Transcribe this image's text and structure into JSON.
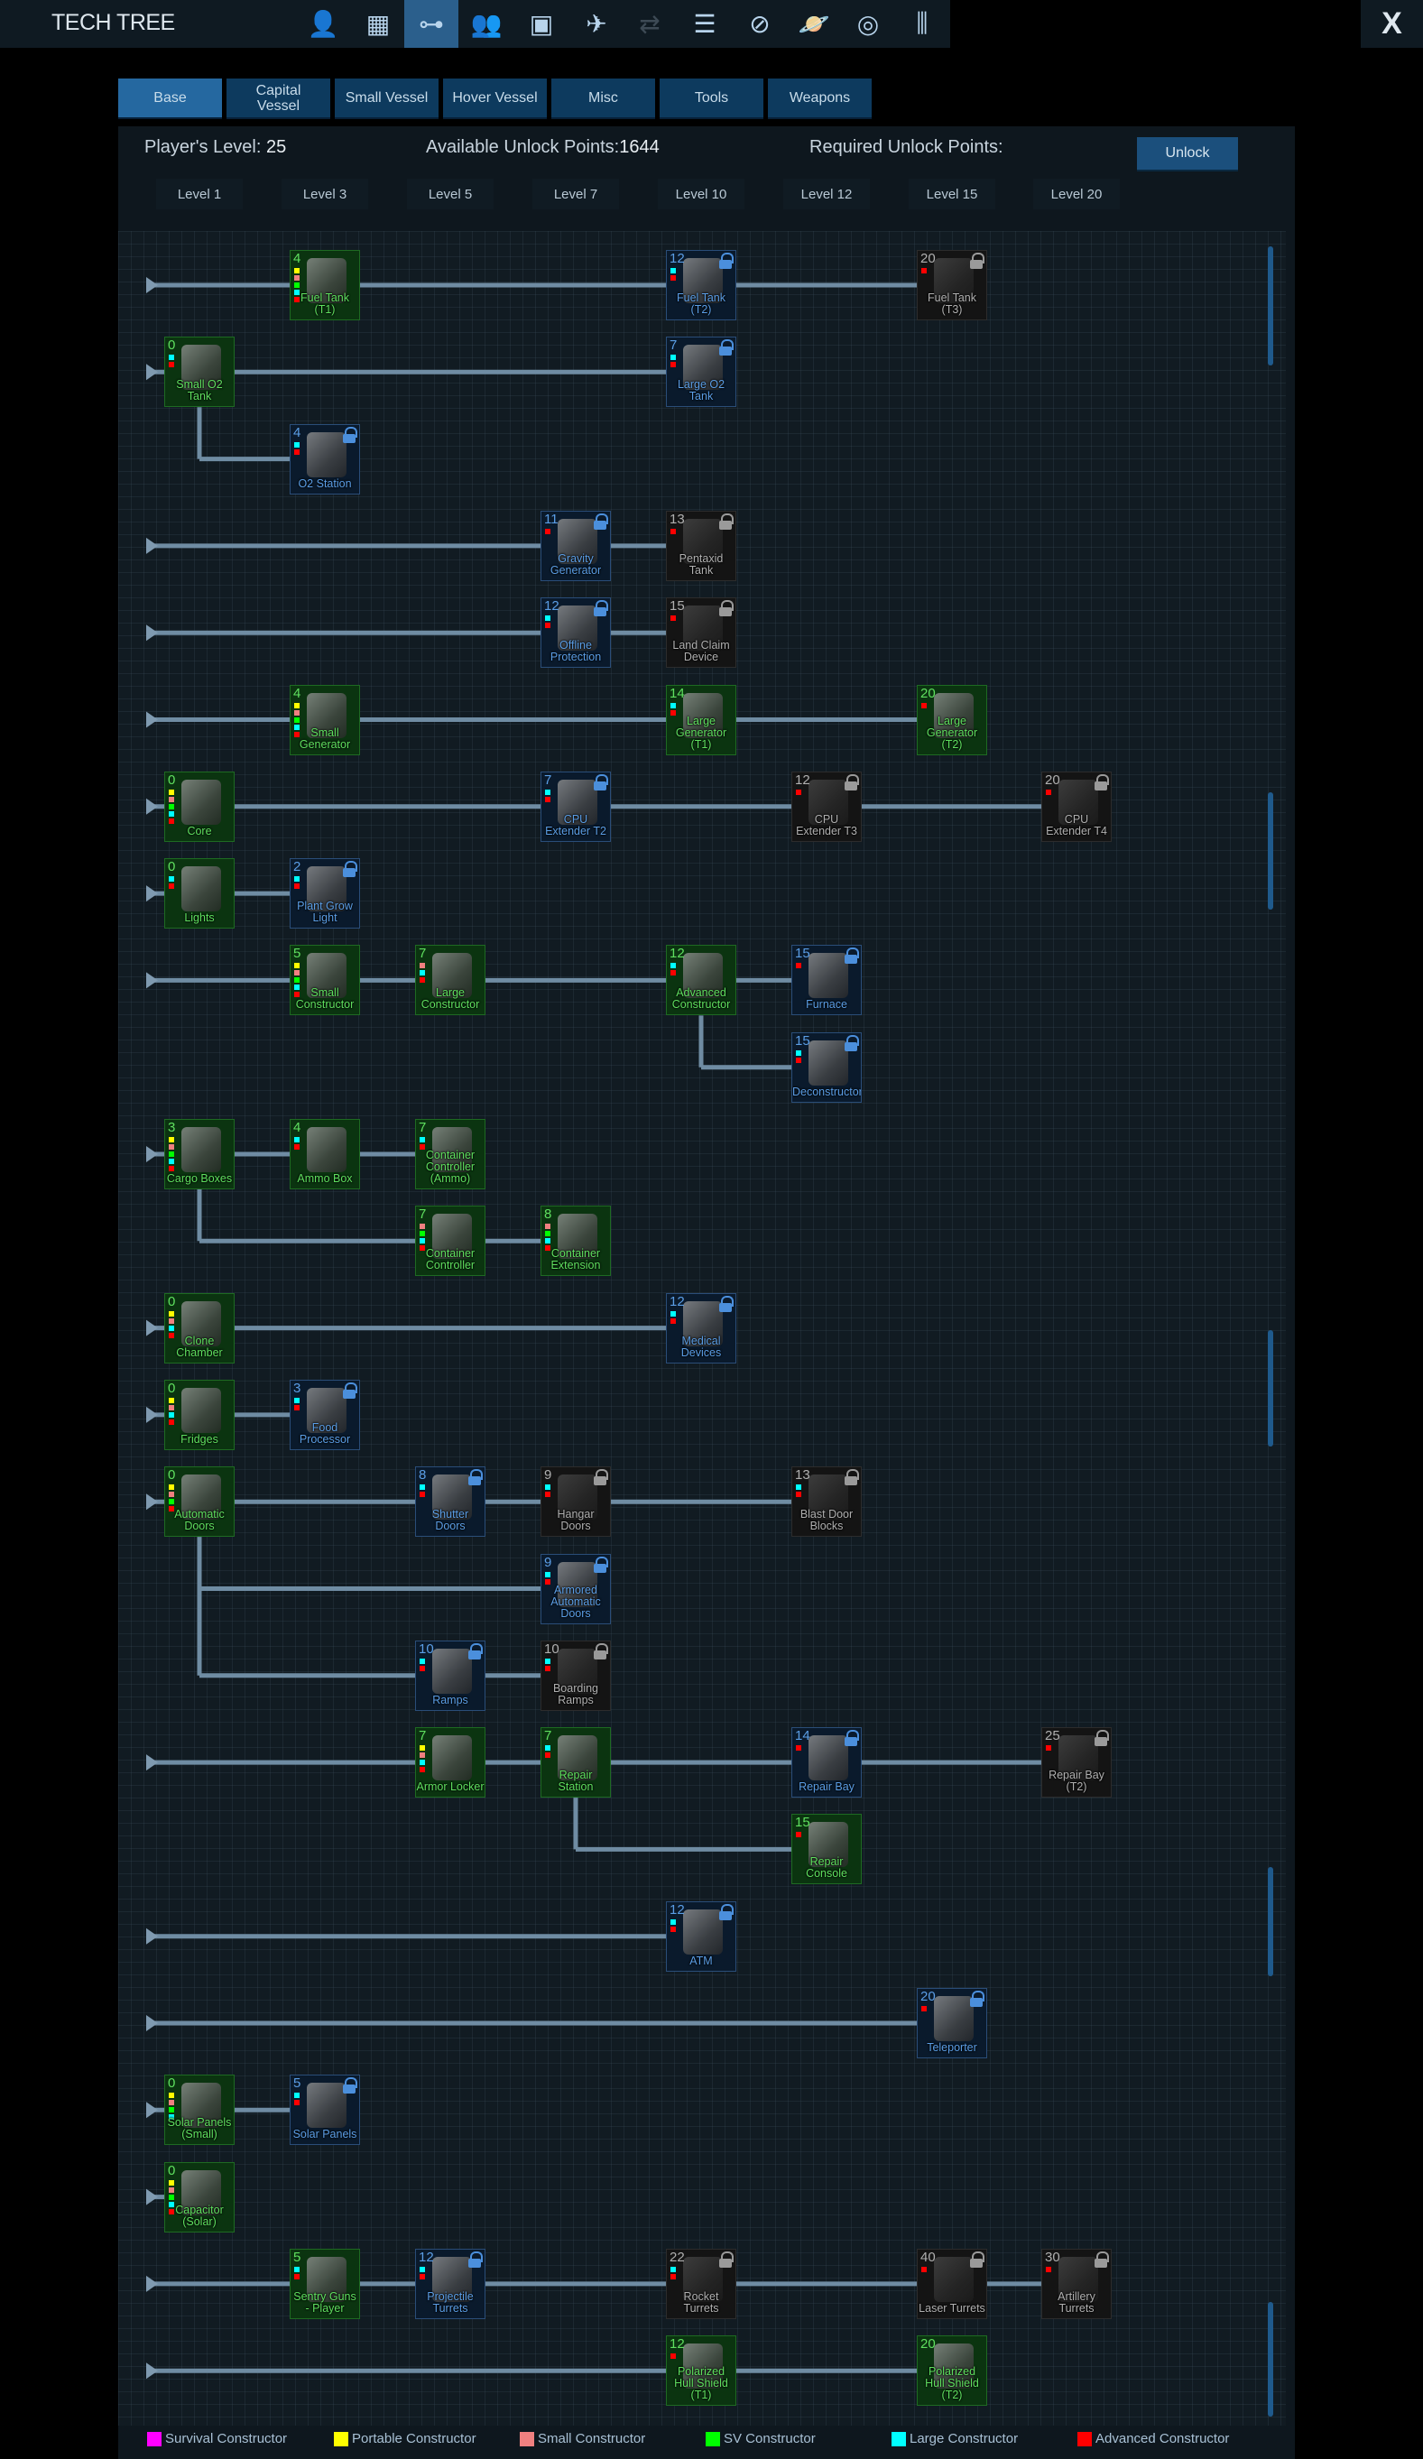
{
  "header": {
    "title": "TECH TREE",
    "close_label": "X",
    "nav_icons": [
      {
        "name": "player-icon",
        "glyph": "👤"
      },
      {
        "name": "factory-icon",
        "glyph": "▦"
      },
      {
        "name": "tech-tree-icon",
        "glyph": "⊶",
        "active": true
      },
      {
        "name": "faction-icon",
        "glyph": "👥"
      },
      {
        "name": "terminal-icon",
        "glyph": "▣"
      },
      {
        "name": "ship-icon",
        "glyph": "✈"
      },
      {
        "name": "trade-icon",
        "glyph": "⇄",
        "dim": true
      },
      {
        "name": "log-icon",
        "glyph": "☰"
      },
      {
        "name": "compass-icon",
        "glyph": "⊘"
      },
      {
        "name": "planet-icon",
        "glyph": "🪐"
      },
      {
        "name": "galaxy-icon",
        "glyph": "◎"
      },
      {
        "name": "settings-icon",
        "glyph": "⫼"
      }
    ]
  },
  "tabs": [
    {
      "label": "Base",
      "active": true
    },
    {
      "label": "Capital Vessel"
    },
    {
      "label": "Small Vessel"
    },
    {
      "label": "Hover Vessel"
    },
    {
      "label": "Misc"
    },
    {
      "label": "Tools"
    },
    {
      "label": "Weapons"
    }
  ],
  "info": {
    "player_level_label": "Player's Level:",
    "player_level": "25",
    "available_label": "Available Unlock Points:",
    "available_points": "1644",
    "required_label": "Required Unlock Points:",
    "unlock_button": "Unlock"
  },
  "levels": [
    "Level 1",
    "Level 3",
    "Level 5",
    "Level 7",
    "Level 10",
    "Level 12",
    "Level 15",
    "Level 20"
  ],
  "constructors": {
    "S": {
      "label": "Survival Constructor",
      "color": "#ff00ff"
    },
    "P": {
      "label": "Portable Constructor",
      "color": "#ffff00"
    },
    "M": {
      "label": "Small Constructor",
      "color": "#f08080"
    },
    "V": {
      "label": "SV Constructor",
      "color": "#00ff00"
    },
    "L": {
      "label": "Large Constructor",
      "color": "#00ffff"
    },
    "A": {
      "label": "Advanced Constructor",
      "color": "#ff0000"
    }
  },
  "legend_order": [
    "S",
    "P",
    "M",
    "V",
    "L",
    "A"
  ],
  "tree": {
    "rows": [
      {
        "nodes": [
          {
            "name": "Fuel Tank (T1)",
            "level": "Level 3",
            "cost": 4,
            "state": "unlocked",
            "c": "PMVLA"
          },
          {
            "name": "Fuel Tank (T2)",
            "level": "Level 10",
            "cost": 12,
            "state": "available",
            "c": "LA"
          },
          {
            "name": "Fuel Tank (T3)",
            "level": "Level 15",
            "cost": 20,
            "state": "locked",
            "c": "A"
          }
        ]
      },
      {
        "nodes": [
          {
            "name": "Small O2 Tank",
            "level": "Level 1",
            "cost": 0,
            "state": "unlocked",
            "c": "LA"
          },
          {
            "name": "Large O2 Tank",
            "level": "Level 10",
            "cost": 7,
            "state": "available",
            "c": "LA"
          }
        ]
      },
      {
        "parent": "Small O2 Tank",
        "nodes": [
          {
            "name": "O2 Station",
            "level": "Level 3",
            "cost": 4,
            "state": "available",
            "c": "LA"
          }
        ]
      },
      {
        "nodes": [
          {
            "name": "Gravity Generator",
            "level": "Level 7",
            "cost": 11,
            "state": "available",
            "c": "A"
          },
          {
            "name": "Pentaxid Tank",
            "level": "Level 10",
            "cost": 13,
            "state": "locked",
            "c": "A"
          }
        ]
      },
      {
        "nodes": [
          {
            "name": "Offline Protection",
            "level": "Level 7",
            "cost": 12,
            "state": "available",
            "c": "LA"
          },
          {
            "name": "Land Claim Device",
            "level": "Level 10",
            "cost": 15,
            "state": "locked",
            "c": "A"
          }
        ]
      },
      {
        "nodes": [
          {
            "name": "Small Generator",
            "level": "Level 3",
            "cost": 4,
            "state": "unlocked",
            "c": "PMVLA"
          },
          {
            "name": "Large Generator (T1)",
            "level": "Level 10",
            "cost": 14,
            "state": "unlocked",
            "c": "LA"
          },
          {
            "name": "Large Generator (T2)",
            "level": "Level 15",
            "cost": 20,
            "state": "unlocked",
            "c": "A"
          }
        ]
      },
      {
        "nodes": [
          {
            "name": "Core",
            "level": "Level 1",
            "cost": 0,
            "state": "unlocked",
            "c": "PMVLA"
          },
          {
            "name": "CPU Extender T2",
            "level": "Level 7",
            "cost": 7,
            "state": "available",
            "c": "LA"
          },
          {
            "name": "CPU Extender T3",
            "level": "Level 12",
            "cost": 12,
            "state": "locked",
            "c": "A"
          },
          {
            "name": "CPU Extender T4",
            "level": "Level 20",
            "cost": 20,
            "state": "locked",
            "c": "A"
          }
        ]
      },
      {
        "nodes": [
          {
            "name": "Lights",
            "level": "Level 1",
            "cost": 0,
            "state": "unlocked",
            "c": "LA"
          },
          {
            "name": "Plant Grow Light",
            "level": "Level 3",
            "cost": 2,
            "state": "available",
            "c": "LA"
          }
        ]
      },
      {
        "nodes": [
          {
            "name": "Small Constructor",
            "level": "Level 3",
            "cost": 5,
            "state": "unlocked",
            "c": "PMVLA"
          },
          {
            "name": "Large Constructor",
            "level": "Level 5",
            "cost": 7,
            "state": "unlocked",
            "c": "MLA"
          },
          {
            "name": "Advanced Constructor",
            "level": "Level 10",
            "cost": 12,
            "state": "unlocked",
            "c": "LA"
          },
          {
            "name": "Furnace",
            "level": "Level 12",
            "cost": 15,
            "state": "available",
            "c": "A"
          }
        ]
      },
      {
        "parent": "Advanced Constructor",
        "nodes": [
          {
            "name": "Deconstructor",
            "level": "Level 12",
            "cost": 15,
            "state": "available",
            "c": "LA"
          }
        ]
      },
      {
        "nodes": [
          {
            "name": "Cargo Boxes",
            "level": "Level 1",
            "cost": 3,
            "state": "unlocked",
            "c": "PMVLA"
          },
          {
            "name": "Ammo Box",
            "level": "Level 3",
            "cost": 4,
            "state": "unlocked",
            "c": "LA"
          },
          {
            "name": "Container Controller (Ammo)",
            "level": "Level 5",
            "cost": 7,
            "state": "unlocked",
            "c": "LA"
          }
        ]
      },
      {
        "parent": "Cargo Boxes",
        "nodes": [
          {
            "name": "Container Controller",
            "level": "Level 5",
            "cost": 7,
            "state": "unlocked",
            "c": "MVLA"
          },
          {
            "name": "Container Extension",
            "level": "Level 7",
            "cost": 8,
            "state": "unlocked",
            "c": "MVLA"
          }
        ]
      },
      {
        "nodes": [
          {
            "name": "Clone Chamber",
            "level": "Level 1",
            "cost": 0,
            "state": "unlocked",
            "c": "PMLA"
          },
          {
            "name": "Medical Devices",
            "level": "Level 10",
            "cost": 12,
            "state": "available",
            "c": "LA"
          }
        ]
      },
      {
        "nodes": [
          {
            "name": "Fridges",
            "level": "Level 1",
            "cost": 0,
            "state": "unlocked",
            "c": "PMLA"
          },
          {
            "name": "Food Processor",
            "level": "Level 3",
            "cost": 3,
            "state": "available",
            "c": "LA"
          }
        ]
      },
      {
        "nodes": [
          {
            "name": "Automatic Doors",
            "level": "Level 1",
            "cost": 0,
            "state": "unlocked",
            "c": "PMVA"
          },
          {
            "name": "Shutter Doors",
            "level": "Level 5",
            "cost": 8,
            "state": "available",
            "c": "LA"
          },
          {
            "name": "Hangar Doors",
            "level": "Level 7",
            "cost": 9,
            "state": "locked",
            "c": "LA"
          },
          {
            "name": "Blast Door Blocks",
            "level": "Level 12",
            "cost": 13,
            "state": "locked",
            "c": "LA"
          }
        ]
      },
      {
        "parent": "Automatic Doors",
        "nodes": [
          {
            "name": "Armored Automatic Doors",
            "level": "Level 7",
            "cost": 9,
            "state": "available",
            "c": "LA"
          }
        ]
      },
      {
        "parent": "Automatic Doors",
        "nodes": [
          {
            "name": "Ramps",
            "level": "Level 5",
            "cost": 10,
            "state": "available",
            "c": "LA"
          },
          {
            "name": "Boarding Ramps",
            "level": "Level 7",
            "cost": 10,
            "state": "locked",
            "c": "LA"
          }
        ]
      },
      {
        "nodes": [
          {
            "name": "Armor Locker",
            "level": "Level 5",
            "cost": 7,
            "state": "unlocked",
            "c": "PMLA"
          },
          {
            "name": "Repair Station",
            "level": "Level 7",
            "cost": 7,
            "state": "unlocked",
            "c": "LA"
          },
          {
            "name": "Repair Bay",
            "level": "Level 12",
            "cost": 14,
            "state": "available",
            "c": "A"
          },
          {
            "name": "Repair Bay (T2)",
            "level": "Level 20",
            "cost": 25,
            "state": "locked",
            "c": "A"
          }
        ]
      },
      {
        "parent": "Repair Station",
        "nodes": [
          {
            "name": "Repair Console",
            "level": "Level 12",
            "cost": 15,
            "state": "unlocked",
            "c": "A"
          }
        ]
      },
      {
        "nodes": [
          {
            "name": "ATM",
            "level": "Level 10",
            "cost": 12,
            "state": "available",
            "c": "LA"
          }
        ]
      },
      {
        "nodes": [
          {
            "name": "Teleporter",
            "level": "Level 15",
            "cost": 20,
            "state": "available",
            "c": "A"
          }
        ]
      },
      {
        "nodes": [
          {
            "name": "Solar Panels (Small)",
            "level": "Level 1",
            "cost": 0,
            "state": "unlocked",
            "c": "PMVL"
          },
          {
            "name": "Solar Panels",
            "level": "Level 3",
            "cost": 5,
            "state": "available",
            "c": "LA"
          }
        ]
      },
      {
        "nodes": [
          {
            "name": "Capacitor (Solar)",
            "level": "Level 1",
            "cost": 0,
            "state": "unlocked",
            "c": "PMVLA"
          }
        ]
      },
      {
        "nodes": [
          {
            "name": "Sentry Guns - Player",
            "level": "Level 3",
            "cost": 5,
            "state": "unlocked",
            "c": "LA"
          },
          {
            "name": "Projectile Turrets",
            "level": "Level 5",
            "cost": 12,
            "state": "available",
            "c": "LA"
          },
          {
            "name": "Rocket Turrets",
            "level": "Level 10",
            "cost": 22,
            "state": "locked",
            "c": "LA"
          },
          {
            "name": "Laser Turrets",
            "level": "Level 15",
            "cost": 40,
            "state": "locked",
            "c": "A"
          },
          {
            "name": "Artillery Turrets",
            "level": "Level 20",
            "cost": 30,
            "state": "locked",
            "c": "A"
          }
        ]
      },
      {
        "nodes": [
          {
            "name": "Polarized Hull Shield (T1)",
            "level": "Level 10",
            "cost": 12,
            "state": "unlocked",
            "c": "A"
          },
          {
            "name": "Polarized Hull Shield (T2)",
            "level": "Level 15",
            "cost": 20,
            "state": "unlocked",
            "c": ""
          }
        ]
      }
    ]
  }
}
